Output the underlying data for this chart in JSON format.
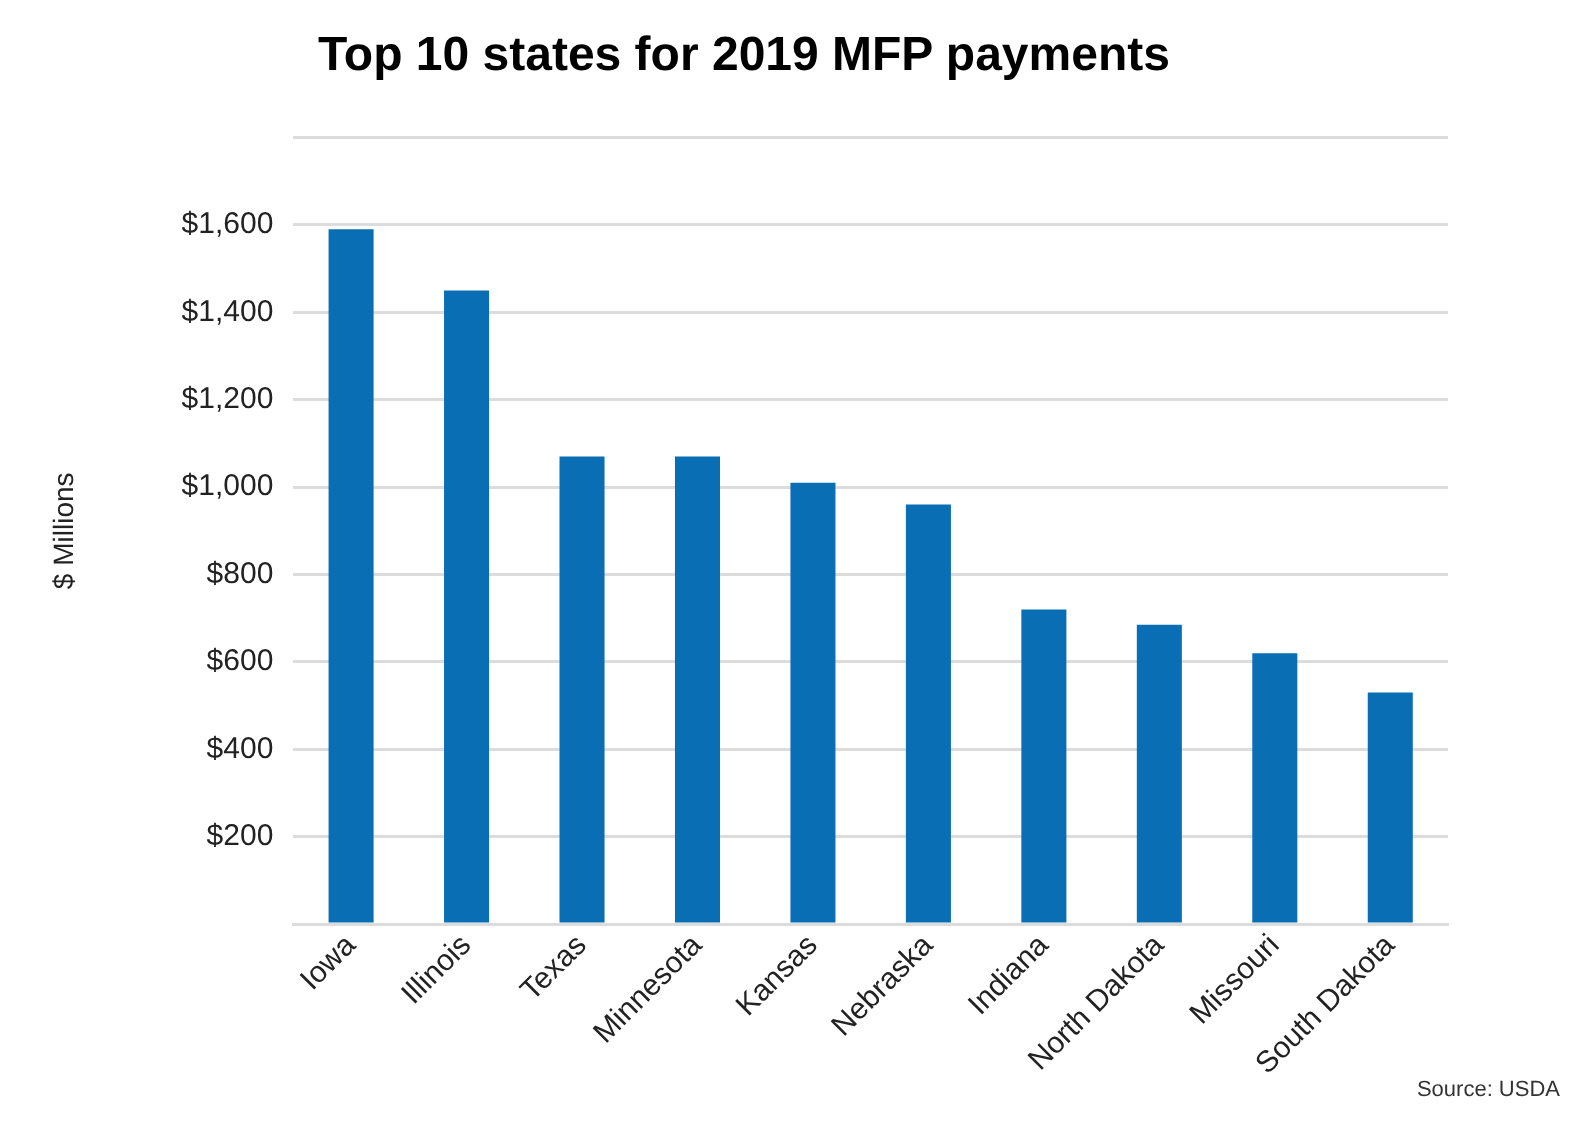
{
  "chart_data": {
    "type": "bar",
    "title": "Top 10 states for 2019 MFP payments",
    "ylabel": "$ Millions",
    "categories": [
      "Iowa",
      "Illinois",
      "Texas",
      "Minnesota",
      "Kansas",
      "Nebraska",
      "Indiana",
      "North Dakota",
      "Missouri",
      "South Dakota"
    ],
    "values": [
      1590,
      1450,
      1070,
      1070,
      1010,
      960,
      720,
      685,
      620,
      530
    ],
    "color": "#0a6eb4",
    "ylim": [
      0,
      1800
    ],
    "yticks": [
      {
        "value": 0,
        "label": null
      },
      {
        "value": 200,
        "label": "$200"
      },
      {
        "value": 400,
        "label": "$400"
      },
      {
        "value": 600,
        "label": "$600"
      },
      {
        "value": 800,
        "label": "$800"
      },
      {
        "value": 1000,
        "label": "$1,000"
      },
      {
        "value": 1200,
        "label": "$1,200"
      },
      {
        "value": 1400,
        "label": "$1,400"
      },
      {
        "value": 1600,
        "label": "$1,600"
      },
      {
        "value": 1800,
        "label": null
      }
    ],
    "grid": "y",
    "legend": false,
    "annotations": [
      "Source: USDA"
    ]
  }
}
